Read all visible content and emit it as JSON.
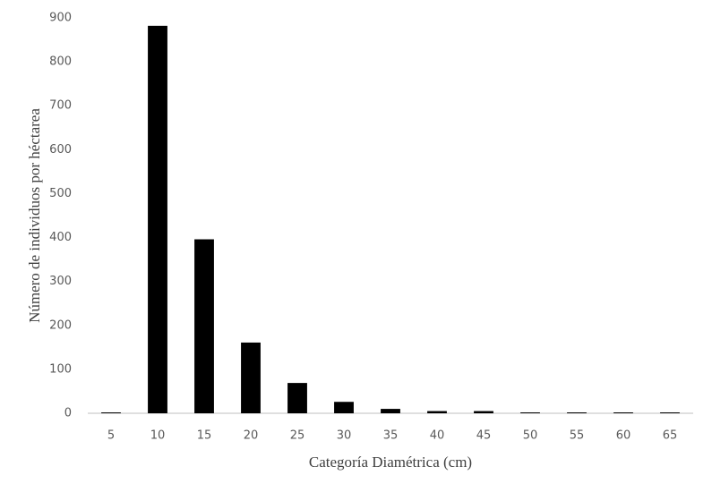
{
  "chart_data": {
    "type": "bar",
    "x_label": "Categoría Diamétrica (cm)",
    "y_label": "Número de  individuos por héctarea",
    "categories": [
      "5",
      "10",
      "15",
      "20",
      "25",
      "30",
      "35",
      "40",
      "45",
      "50",
      "55",
      "60",
      "65"
    ],
    "values": [
      2,
      882,
      396,
      161,
      69,
      26,
      10,
      5,
      5,
      2,
      2,
      2,
      2
    ],
    "color": "#000000",
    "ylim": [
      0,
      900
    ],
    "yticks": [
      0,
      100,
      200,
      300,
      400,
      500,
      600,
      700,
      800,
      900
    ],
    "grid": false
  }
}
